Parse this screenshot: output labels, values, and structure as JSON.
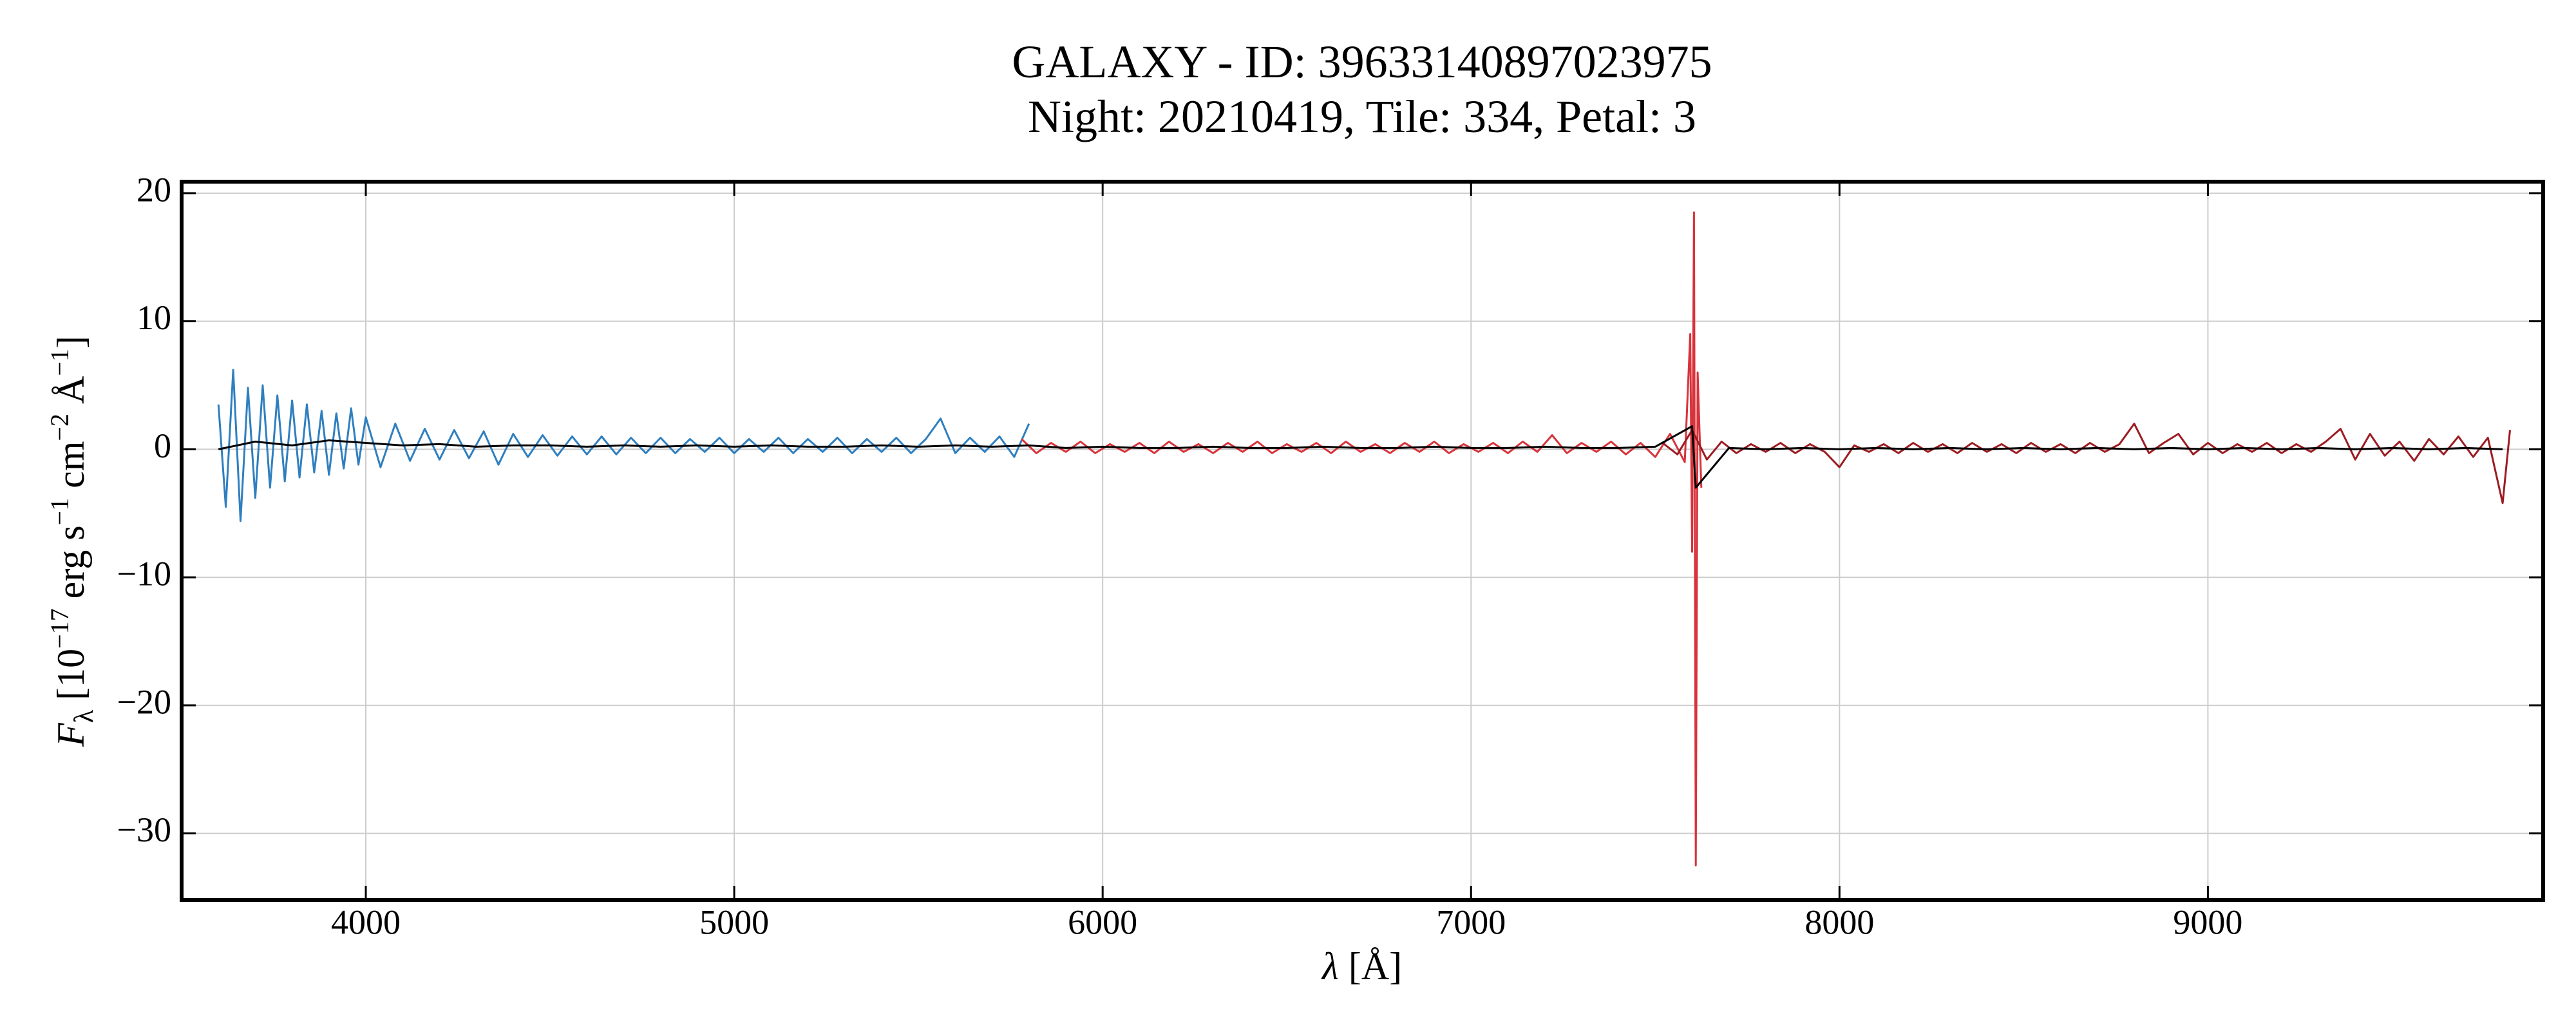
{
  "chart_data": {
    "type": "line",
    "title": [
      "GALAXY - ID: 39633140897023975",
      "Night: 20210419, Tile: 334, Petal: 3"
    ],
    "xlabel": [
      "λ",
      " [Å]"
    ],
    "ylabel": [
      "F",
      "λ",
      " [10",
      "−17",
      " erg s",
      "−1",
      " cm",
      "−2",
      " Å",
      "−1",
      "]"
    ],
    "xlim": [
      3500,
      9910
    ],
    "ylim": [
      -35.2,
      20.9
    ],
    "xticks": [
      4000,
      5000,
      6000,
      7000,
      8000,
      9000
    ],
    "yticks": [
      {
        "value": -30,
        "label": "−30"
      },
      {
        "value": -20,
        "label": "−20"
      },
      {
        "value": -10,
        "label": "−10"
      },
      0,
      10,
      20
    ],
    "grid": true,
    "series": [
      {
        "color": "#2f7fbf",
        "x": [
          3600,
          3620,
          3640,
          3660,
          3680,
          3700,
          3720,
          3740,
          3760,
          3780,
          3800,
          3820,
          3840,
          3860,
          3880,
          3900,
          3920,
          3940,
          3960,
          3980,
          4000,
          4040,
          4080,
          4120,
          4160,
          4200,
          4240,
          4280,
          4320,
          4360,
          4400,
          4440,
          4480,
          4520,
          4560,
          4600,
          4640,
          4680,
          4720,
          4760,
          4800,
          4840,
          4880,
          4920,
          4960,
          5000,
          5040,
          5080,
          5120,
          5160,
          5200,
          5240,
          5280,
          5320,
          5360,
          5400,
          5440,
          5480,
          5520,
          5560,
          5600,
          5640,
          5680,
          5720,
          5760,
          5800
        ],
        "values": [
          3.5,
          -4.5,
          6.2,
          -5.6,
          4.8,
          -3.8,
          5.0,
          -3.0,
          4.2,
          -2.5,
          3.8,
          -2.2,
          3.5,
          -1.8,
          3.0,
          -2.0,
          2.8,
          -1.5,
          3.2,
          -1.2,
          2.5,
          -1.4,
          2.0,
          -0.9,
          1.6,
          -0.8,
          1.5,
          -0.7,
          1.4,
          -1.2,
          1.2,
          -0.6,
          1.1,
          -0.5,
          1.0,
          -0.4,
          1.0,
          -0.4,
          0.9,
          -0.3,
          0.9,
          -0.3,
          0.8,
          -0.2,
          0.9,
          -0.3,
          0.8,
          -0.2,
          0.9,
          -0.3,
          0.8,
          -0.2,
          0.9,
          -0.3,
          0.8,
          -0.2,
          0.9,
          -0.3,
          0.8,
          2.4,
          -0.3,
          0.9,
          -0.2,
          1.0,
          -0.6,
          2.0
        ]
      },
      {
        "color": "#d8333b",
        "x": [
          5780,
          5820,
          5860,
          5900,
          5940,
          5980,
          6020,
          6060,
          6100,
          6140,
          6180,
          6220,
          6260,
          6300,
          6340,
          6380,
          6420,
          6460,
          6500,
          6540,
          6580,
          6620,
          6660,
          6700,
          6740,
          6780,
          6820,
          6860,
          6900,
          6940,
          6980,
          7020,
          7060,
          7100,
          7140,
          7180,
          7220,
          7260,
          7300,
          7340,
          7380,
          7420,
          7460,
          7500,
          7540,
          7580,
          7595,
          7600,
          7605,
          7610,
          7615,
          7625
        ],
        "values": [
          0.8,
          -0.3,
          0.5,
          -0.2,
          0.6,
          -0.3,
          0.4,
          -0.2,
          0.5,
          -0.3,
          0.6,
          -0.2,
          0.4,
          -0.3,
          0.5,
          -0.2,
          0.6,
          -0.3,
          0.4,
          -0.2,
          0.5,
          -0.3,
          0.6,
          -0.2,
          0.4,
          -0.3,
          0.5,
          -0.2,
          0.6,
          -0.3,
          0.4,
          -0.2,
          0.5,
          -0.3,
          0.6,
          -0.2,
          1.1,
          -0.3,
          0.5,
          -0.2,
          0.6,
          -0.4,
          0.5,
          -0.6,
          1.2,
          -1.0,
          9.0,
          -8.0,
          18.5,
          -32.5,
          6.0,
          -3.0
        ]
      },
      {
        "color": "#9c1c22",
        "x": [
          7520,
          7560,
          7600,
          7640,
          7680,
          7720,
          7760,
          7800,
          7840,
          7880,
          7920,
          7960,
          8000,
          8040,
          8080,
          8120,
          8160,
          8200,
          8240,
          8280,
          8320,
          8360,
          8400,
          8440,
          8480,
          8520,
          8560,
          8600,
          8640,
          8680,
          8720,
          8760,
          8800,
          8840,
          8880,
          8920,
          8960,
          9000,
          9040,
          9080,
          9120,
          9160,
          9200,
          9240,
          9280,
          9320,
          9360,
          9400,
          9440,
          9480,
          9520,
          9560,
          9600,
          9640,
          9680,
          9720,
          9760,
          9800,
          9820
        ],
        "values": [
          0.5,
          -0.4,
          1.5,
          -0.8,
          0.6,
          -0.3,
          0.4,
          -0.2,
          0.5,
          -0.3,
          0.4,
          -0.2,
          -1.4,
          0.3,
          -0.2,
          0.4,
          -0.3,
          0.5,
          -0.2,
          0.4,
          -0.3,
          0.5,
          -0.2,
          0.4,
          -0.3,
          0.5,
          -0.2,
          0.4,
          -0.3,
          0.5,
          -0.2,
          0.4,
          2.0,
          -0.3,
          0.5,
          1.2,
          -0.4,
          0.5,
          -0.3,
          0.4,
          -0.2,
          0.5,
          -0.3,
          0.4,
          -0.2,
          0.6,
          1.6,
          -0.8,
          1.2,
          -0.5,
          0.6,
          -0.9,
          0.8,
          -0.4,
          1.0,
          -0.6,
          0.9,
          -4.2,
          1.5
        ]
      },
      {
        "color": "#000000",
        "x": [
          3600,
          3700,
          3800,
          3900,
          4000,
          4100,
          4200,
          4300,
          4400,
          4500,
          4600,
          4700,
          4800,
          4900,
          5000,
          5100,
          5200,
          5300,
          5400,
          5500,
          5600,
          5700,
          5800,
          5900,
          6000,
          6100,
          6200,
          6300,
          6400,
          6500,
          6600,
          6700,
          6800,
          6900,
          7000,
          7100,
          7200,
          7300,
          7400,
          7500,
          7600,
          7610,
          7700,
          7800,
          7900,
          8000,
          8100,
          8200,
          8300,
          8400,
          8500,
          8600,
          8700,
          8800,
          8900,
          9000,
          9100,
          9200,
          9300,
          9400,
          9500,
          9600,
          9700,
          9800
        ],
        "values": [
          0.0,
          0.6,
          0.3,
          0.7,
          0.5,
          0.3,
          0.4,
          0.2,
          0.3,
          0.3,
          0.2,
          0.3,
          0.2,
          0.3,
          0.2,
          0.3,
          0.2,
          0.2,
          0.3,
          0.2,
          0.3,
          0.2,
          0.3,
          0.1,
          0.2,
          0.1,
          0.1,
          0.2,
          0.1,
          0.1,
          0.2,
          0.1,
          0.1,
          0.2,
          0.1,
          0.1,
          0.2,
          0.1,
          0.1,
          0.2,
          1.8,
          -3.0,
          0.1,
          0.0,
          0.1,
          0.0,
          0.1,
          0.0,
          0.1,
          0.0,
          0.1,
          0.0,
          0.1,
          0.0,
          0.1,
          0.0,
          0.1,
          0.0,
          0.1,
          0.0,
          0.1,
          0.0,
          0.1,
          0.0
        ]
      }
    ]
  }
}
